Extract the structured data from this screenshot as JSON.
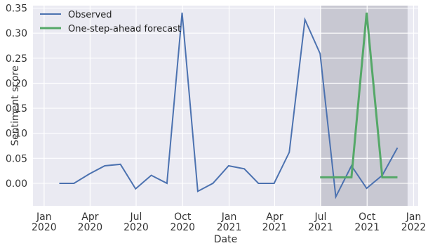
{
  "chart_data": {
    "type": "line",
    "xlabel": "Date",
    "ylabel": "Sentiment score",
    "ylim": [
      -0.045,
      0.355
    ],
    "xlim": [
      "2019-12-10",
      "2022-01-10"
    ],
    "grid": true,
    "legend_position": "top-left",
    "shaded_region": {
      "x": [
        "2021-07-01",
        "2021-12-20"
      ],
      "color": "#c8c8d2"
    },
    "x_ticks": [
      {
        "date": "2020-01-01",
        "label_top": "Jan",
        "label_bottom": "2020"
      },
      {
        "date": "2020-04-01",
        "label_top": "Apr",
        "label_bottom": "2020"
      },
      {
        "date": "2020-07-01",
        "label_top": "Jul",
        "label_bottom": "2020"
      },
      {
        "date": "2020-10-01",
        "label_top": "Oct",
        "label_bottom": "2020"
      },
      {
        "date": "2021-01-01",
        "label_top": "Jan",
        "label_bottom": "2021"
      },
      {
        "date": "2021-04-01",
        "label_top": "Apr",
        "label_bottom": "2021"
      },
      {
        "date": "2021-07-01",
        "label_top": "Jul",
        "label_bottom": "2021"
      },
      {
        "date": "2021-10-01",
        "label_top": "Oct",
        "label_bottom": "2021"
      },
      {
        "date": "2022-01-01",
        "label_top": "Jan",
        "label_bottom": "2022"
      }
    ],
    "y_ticks": [
      {
        "value": 0.0,
        "label": "0.00"
      },
      {
        "value": 0.05,
        "label": "0.05"
      },
      {
        "value": 0.1,
        "label": "0.10"
      },
      {
        "value": 0.15,
        "label": "0.15"
      },
      {
        "value": 0.2,
        "label": "0.20"
      },
      {
        "value": 0.25,
        "label": "0.25"
      },
      {
        "value": 0.3,
        "label": "0.30"
      },
      {
        "value": 0.35,
        "label": "0.35"
      }
    ],
    "series": [
      {
        "name": "Observed",
        "color": "#4c72b0",
        "points": [
          {
            "x": "2020-01-31",
            "y": 0.0
          },
          {
            "x": "2020-02-29",
            "y": 0.0
          },
          {
            "x": "2020-03-31",
            "y": 0.019
          },
          {
            "x": "2020-04-30",
            "y": 0.035
          },
          {
            "x": "2020-05-31",
            "y": 0.038
          },
          {
            "x": "2020-06-30",
            "y": -0.011
          },
          {
            "x": "2020-07-31",
            "y": 0.016
          },
          {
            "x": "2020-08-31",
            "y": 0.0
          },
          {
            "x": "2020-09-30",
            "y": 0.341
          },
          {
            "x": "2020-10-31",
            "y": -0.016
          },
          {
            "x": "2020-11-30",
            "y": 0.0
          },
          {
            "x": "2020-12-31",
            "y": 0.035
          },
          {
            "x": "2021-01-31",
            "y": 0.029
          },
          {
            "x": "2021-02-28",
            "y": 0.0
          },
          {
            "x": "2021-03-31",
            "y": 0.0
          },
          {
            "x": "2021-04-30",
            "y": 0.062
          },
          {
            "x": "2021-05-31",
            "y": 0.327
          },
          {
            "x": "2021-06-30",
            "y": 0.259
          },
          {
            "x": "2021-07-31",
            "y": -0.027
          },
          {
            "x": "2021-08-31",
            "y": 0.035
          },
          {
            "x": "2021-09-30",
            "y": -0.01
          },
          {
            "x": "2021-10-31",
            "y": 0.016
          },
          {
            "x": "2021-11-30",
            "y": 0.071
          }
        ]
      },
      {
        "name": "One-step-ahead forecast",
        "color": "#55a868",
        "points": [
          {
            "x": "2021-06-30",
            "y": 0.012
          },
          {
            "x": "2021-07-31",
            "y": 0.012
          },
          {
            "x": "2021-08-31",
            "y": 0.012
          },
          {
            "x": "2021-09-30",
            "y": 0.341
          },
          {
            "x": "2021-10-31",
            "y": 0.012
          },
          {
            "x": "2021-11-30",
            "y": 0.012
          }
        ]
      }
    ]
  }
}
